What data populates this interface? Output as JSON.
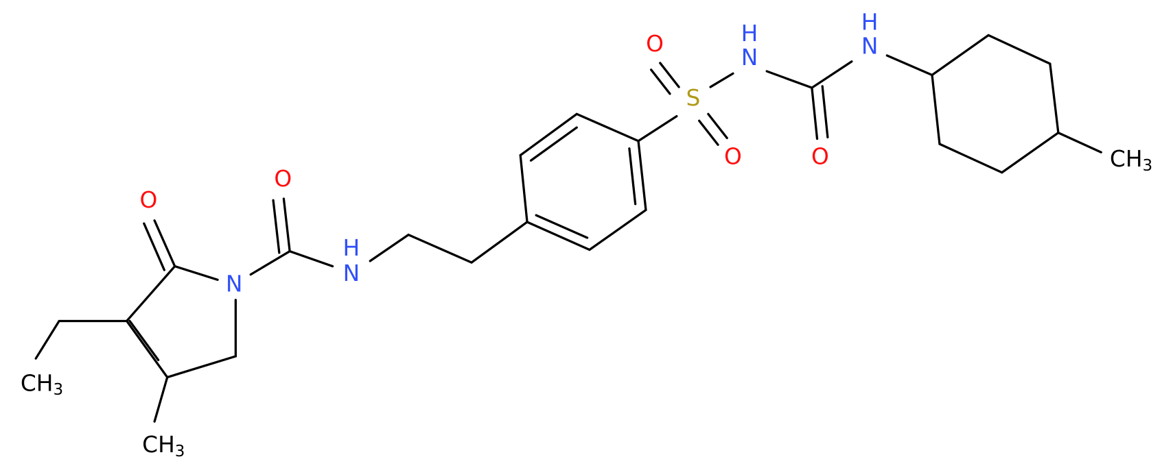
{
  "molecule": {
    "atoms": [
      {
        "label": "O"
      },
      {
        "label": "O"
      },
      {
        "label": "N"
      },
      {
        "label": "N"
      },
      {
        "label": "H"
      },
      {
        "label": "S"
      },
      {
        "label": "O"
      },
      {
        "label": "O"
      },
      {
        "label": "N"
      },
      {
        "label": "H"
      },
      {
        "label": "O"
      },
      {
        "label": "N"
      },
      {
        "label": "H"
      },
      {
        "label": "CH3"
      },
      {
        "label": "CH3"
      },
      {
        "label": "CH3"
      }
    ]
  }
}
